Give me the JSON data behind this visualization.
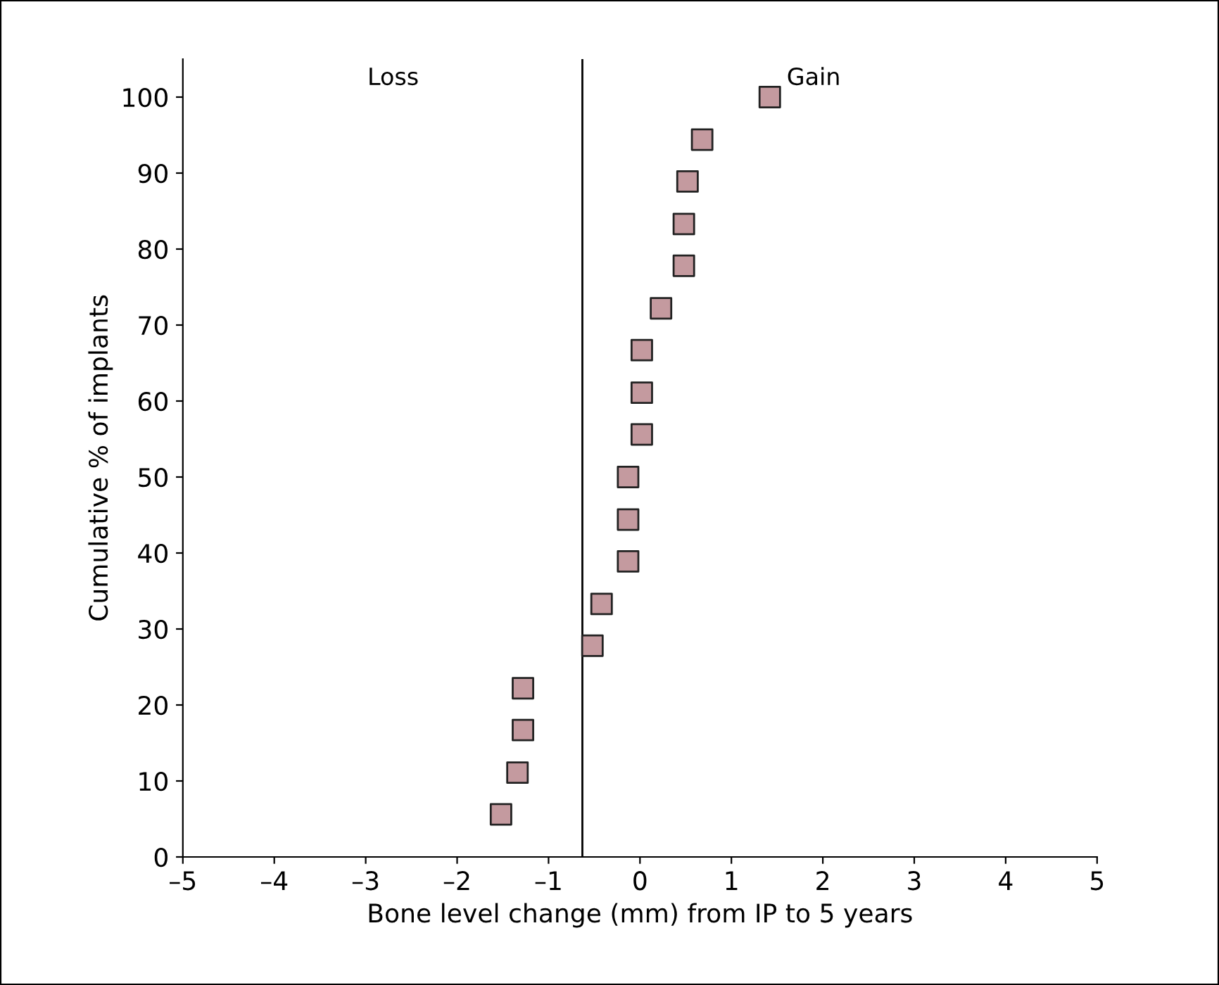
{
  "chart_data": {
    "type": "scatter",
    "xlabel": "Bone level change (mm) from IP to 5 years",
    "ylabel": "Cumulative % of implants",
    "x": [
      -1.52,
      -1.34,
      -1.28,
      -1.28,
      -0.52,
      -0.42,
      -0.13,
      -0.13,
      -0.13,
      0.02,
      0.02,
      0.02,
      0.23,
      0.48,
      0.48,
      0.52,
      0.68,
      1.42
    ],
    "values": [
      5.6,
      11.1,
      16.7,
      22.2,
      27.8,
      33.3,
      38.9,
      44.4,
      50.0,
      55.6,
      61.1,
      66.7,
      72.2,
      77.8,
      83.3,
      88.9,
      94.4,
      100
    ],
    "color": "#c49a9f",
    "marker": "square",
    "xlim": [
      -5,
      5
    ],
    "xticks": [
      {
        "value": -5,
        "label": "–5"
      },
      {
        "value": -4,
        "label": "–4"
      },
      {
        "value": -3,
        "label": "–3"
      },
      {
        "value": -2,
        "label": "–2"
      },
      {
        "value": -1,
        "label": "–1"
      },
      0,
      1,
      2,
      3,
      4,
      5
    ],
    "ylim": [
      0,
      105
    ],
    "yticks": [
      0,
      10,
      20,
      30,
      40,
      50,
      60,
      70,
      80,
      90,
      100
    ],
    "ref_lines": [
      {
        "axis": "x",
        "value": -0.63,
        "color": "#000000"
      }
    ],
    "annotations": [
      "Loss",
      "Gain"
    ],
    "grid": false,
    "legend": false
  }
}
